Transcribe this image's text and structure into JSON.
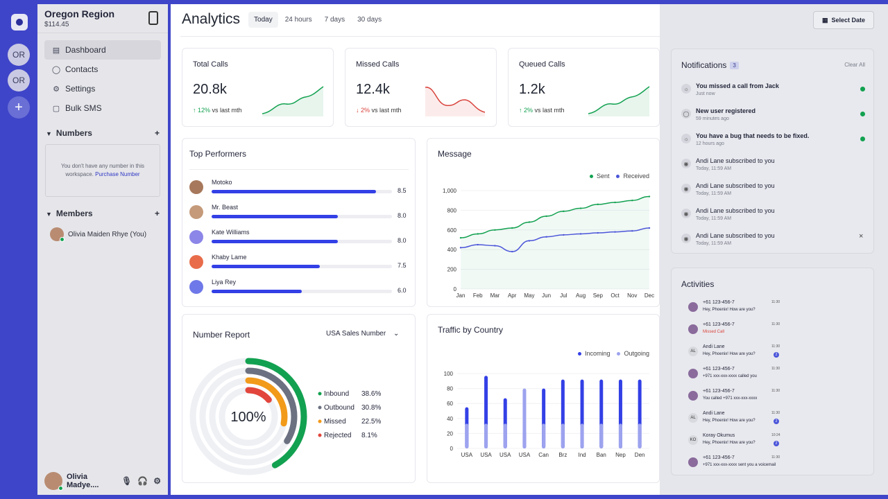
{
  "rail": {
    "orgs": [
      "OR",
      "OR"
    ],
    "add": "+"
  },
  "sidebar": {
    "org_title": "Oregon Region",
    "balance": "$114.45",
    "nav": [
      {
        "label": "Dashboard",
        "icon": "dashboard-icon"
      },
      {
        "label": "Contacts",
        "icon": "user-icon"
      },
      {
        "label": "Settings",
        "icon": "gear-icon"
      },
      {
        "label": "Bulk SMS",
        "icon": "messages-icon"
      }
    ],
    "numbers_title": "Numbers",
    "numbers_empty": "You don't have any number in this workspace.",
    "numbers_link": "Purchase Number",
    "members_title": "Members",
    "member": "Olivia Maiden Rhye (You)",
    "footer_user": "Olivia Madye...."
  },
  "header": {
    "title": "Analytics",
    "tabs": [
      "Today",
      "24 hours",
      "7 days",
      "30 days"
    ],
    "select_date": "Select Date"
  },
  "stats": [
    {
      "label": "Total Calls",
      "value": "20.8k",
      "change": "12%",
      "direction": "up",
      "compare": "vs last mth",
      "color": "#12a150"
    },
    {
      "label": "Missed Calls",
      "value": "12.4k",
      "change": "2%",
      "direction": "down",
      "compare": "vs last mth",
      "color": "#d9413a"
    },
    {
      "label": "Queued Calls",
      "value": "1.2k",
      "change": "2%",
      "direction": "up",
      "compare": "vs last mth",
      "color": "#12a150"
    }
  ],
  "performers": {
    "title": "Top Performers",
    "rows": [
      {
        "name": "Motoko",
        "score": "8.5",
        "fraction": 0.91
      },
      {
        "name": "Mr. Beast",
        "score": "8.0",
        "fraction": 0.7
      },
      {
        "name": "Kate Williams",
        "score": "8.0",
        "fraction": 0.7
      },
      {
        "name": "Khaby Lame",
        "score": "7.5",
        "fraction": 0.6
      },
      {
        "name": "Liya Rey",
        "score": "6.0",
        "fraction": 0.5
      }
    ]
  },
  "chart_data": [
    {
      "type": "line",
      "title": "Message",
      "x": [
        "Jan",
        "Feb",
        "Mar",
        "Apr",
        "May",
        "Jun",
        "Jul",
        "Aug",
        "Sep",
        "Oct",
        "Nov",
        "Dec"
      ],
      "ylim": [
        0,
        1000
      ],
      "yticks": [
        "0",
        "200",
        "400",
        "600",
        "800",
        "1,000"
      ],
      "legend": "top-right",
      "series": [
        {
          "name": "Sent",
          "color": "#12a150",
          "values": [
            520,
            560,
            600,
            620,
            680,
            740,
            790,
            820,
            860,
            880,
            900,
            940
          ]
        },
        {
          "name": "Received",
          "color": "#4b55d9",
          "values": [
            420,
            450,
            440,
            380,
            490,
            530,
            550,
            560,
            570,
            580,
            590,
            620
          ]
        }
      ]
    },
    {
      "type": "pie",
      "title": "Number Report",
      "center_label": "100%",
      "dropdown": "USA Sales Number",
      "series": [
        {
          "name": "Inbound",
          "value": "38.6%",
          "pct": 38.6,
          "color": "#12a150"
        },
        {
          "name": "Outbound",
          "value": "30.8%",
          "pct": 30.8,
          "color": "#6c7181"
        },
        {
          "name": "Missed",
          "value": "22.5%",
          "pct": 22.5,
          "color": "#f29a1a"
        },
        {
          "name": "Rejected",
          "value": "8.1%",
          "pct": 8.1,
          "color": "#e2453b"
        }
      ]
    },
    {
      "type": "bar",
      "title": "Traffic by Country",
      "categories": [
        "USA",
        "USA",
        "USA",
        "USA",
        "Can",
        "Brz",
        "Ind",
        "Ban",
        "Nep",
        "Den"
      ],
      "ylim": [
        0,
        100
      ],
      "yticks": [
        "0",
        "20",
        "40",
        "60",
        "80",
        "100"
      ],
      "legend": "top-right",
      "series": [
        {
          "name": "Incoming",
          "color": "#3340e6",
          "values": [
            55,
            97,
            67,
            23,
            80,
            92,
            92,
            92,
            92,
            92
          ]
        },
        {
          "name": "Outgoing",
          "color": "#9da3ee",
          "values": [
            33,
            33,
            33,
            80,
            33,
            33,
            33,
            33,
            33,
            33
          ]
        }
      ]
    }
  ],
  "notifications": {
    "title": "Notifications",
    "count": "3",
    "clear_all": "Clear All",
    "items": [
      {
        "text": "You missed a call from Jack",
        "time": "Just now",
        "unread": true,
        "bold": true
      },
      {
        "text": "New user registered",
        "time": "59 minutes ago",
        "unread": true,
        "bold": true
      },
      {
        "text": "You have a bug that needs to be fixed.",
        "time": "12 hours ago",
        "unread": true,
        "bold": true
      },
      {
        "text": "Andi Lane subscribed to you",
        "time": "Today, 11:59 AM",
        "unread": false,
        "bold": false
      },
      {
        "text": "Andi Lane subscribed to you",
        "time": "Today, 11:59 AM",
        "unread": false,
        "bold": false
      },
      {
        "text": "Andi Lane subscribed to you",
        "time": "Today, 11:59 AM",
        "unread": false,
        "bold": false
      },
      {
        "text": "Andi Lane subscribed to you",
        "time": "Today, 11:59 AM",
        "unread": false,
        "bold": false,
        "close": "×"
      }
    ]
  },
  "activities": {
    "title": "Activities",
    "items": [
      {
        "who": "+61 123-456-7",
        "time": "11:30",
        "msg": "Hey, Phoenix! How are you?",
        "style": "normal",
        "badge": ""
      },
      {
        "who": "+61 123-456-7",
        "time": "11:30",
        "msg": "Missed Call",
        "style": "red",
        "badge": ""
      },
      {
        "who": "Andi Lane",
        "initials": "AL",
        "time": "11:30",
        "msg": "Hey, Phoenix! How are you?",
        "style": "normal",
        "badge": "2"
      },
      {
        "who": "+61 123-456-7",
        "time": "11:30",
        "msg": "+971 xxx-xxx-xxxx called you",
        "style": "normal",
        "badge": ""
      },
      {
        "who": "+61 123-456-7",
        "time": "11:30",
        "msg": "You called +971 xxx-xxx-xxxx",
        "style": "normal",
        "badge": ""
      },
      {
        "who": "Andi Lane",
        "initials": "AL",
        "time": "11:30",
        "msg": "Hey, Phoenix! How are you?",
        "style": "normal",
        "badge": "2"
      },
      {
        "who": "Koray Okumus",
        "initials": "KO",
        "time": "10:24",
        "msg": "Hey, Phoenix! How are you?",
        "style": "normal",
        "badge": "2"
      },
      {
        "who": "+61 123-456-7",
        "time": "11:30",
        "msg": "+971 xxx-xxx-xxxx sent you a voicemail",
        "style": "normal",
        "badge": ""
      }
    ]
  }
}
